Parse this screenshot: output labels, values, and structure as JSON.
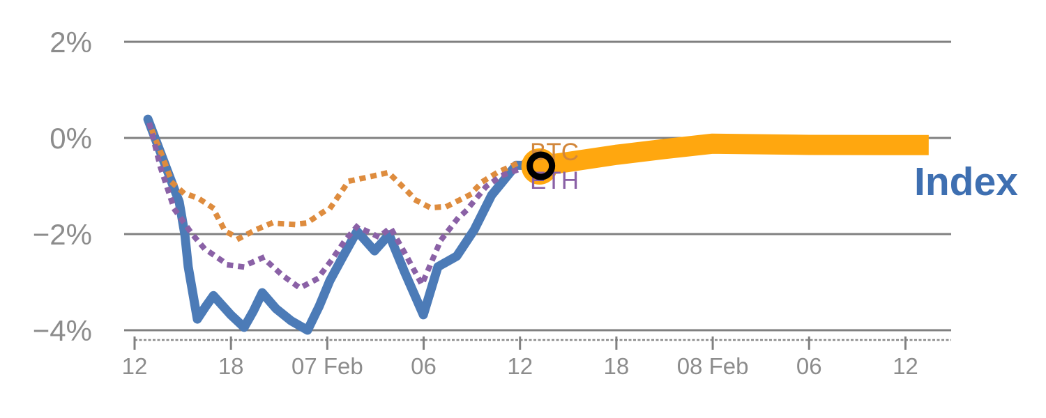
{
  "chart_data": {
    "type": "line",
    "title": "",
    "x_axis": {
      "unit": "time, 6-hour intervals",
      "ticks": [
        {
          "pos": 0,
          "label": "12"
        },
        {
          "pos": 6,
          "label": "18"
        },
        {
          "pos": 12,
          "label": "07 Feb"
        },
        {
          "pos": 18,
          "label": "06"
        },
        {
          "pos": 24,
          "label": "12"
        },
        {
          "pos": 30,
          "label": "18"
        },
        {
          "pos": 36,
          "label": "08 Feb"
        },
        {
          "pos": 42,
          "label": "06"
        },
        {
          "pos": 48,
          "label": "12"
        }
      ],
      "range_hours": [
        -0.7,
        50.6
      ],
      "minor_tick_line": "dashed"
    },
    "y_axis": {
      "ticks": [
        {
          "value": 2,
          "label": "2%"
        },
        {
          "value": 0,
          "label": "0%"
        },
        {
          "value": -2,
          "label": "−2%"
        },
        {
          "value": -4,
          "label": "−4%"
        }
      ],
      "range_pct": [
        -4.4,
        2.6
      ],
      "gridlines": true,
      "gridline_color": "#808080"
    },
    "series": [
      {
        "name": "Index",
        "color": "#4C7BB7",
        "style": "solid",
        "points": [
          [
            0.83,
            0.39
          ],
          [
            2.78,
            -1.33
          ],
          [
            3.13,
            -2.01
          ],
          [
            3.34,
            -2.68
          ],
          [
            3.91,
            -3.77
          ],
          [
            4.4,
            -3.52
          ],
          [
            4.91,
            -3.28
          ],
          [
            5.99,
            -3.68
          ],
          [
            6.82,
            -3.94
          ],
          [
            7.4,
            -3.6
          ],
          [
            7.95,
            -3.22
          ],
          [
            8.8,
            -3.55
          ],
          [
            9.73,
            -3.8
          ],
          [
            10.77,
            -4.0
          ],
          [
            11.5,
            -3.5
          ],
          [
            12.16,
            -2.97
          ],
          [
            13.0,
            -2.45
          ],
          [
            13.85,
            -1.94
          ],
          [
            14.94,
            -2.35
          ],
          [
            15.85,
            -2.01
          ],
          [
            16.8,
            -2.78
          ],
          [
            17.98,
            -3.68
          ],
          [
            18.89,
            -2.68
          ],
          [
            20.06,
            -2.46
          ],
          [
            21.15,
            -1.91
          ],
          [
            22.23,
            -1.19
          ],
          [
            23.75,
            -0.57
          ],
          [
            25.3,
            -0.58
          ]
        ]
      },
      {
        "name": "BTC",
        "color": "#DE8C3E",
        "style": "dotted",
        "points": [
          [
            1.13,
            0.12
          ],
          [
            1.74,
            -0.39
          ],
          [
            2.34,
            -0.93
          ],
          [
            3.04,
            -1.14
          ],
          [
            3.99,
            -1.26
          ],
          [
            4.86,
            -1.45
          ],
          [
            5.64,
            -1.94
          ],
          [
            6.51,
            -2.09
          ],
          [
            7.55,
            -1.91
          ],
          [
            8.55,
            -1.77
          ],
          [
            9.86,
            -1.8
          ],
          [
            10.72,
            -1.77
          ],
          [
            12.24,
            -1.43
          ],
          [
            13.33,
            -0.9
          ],
          [
            14.33,
            -0.83
          ],
          [
            15.8,
            -0.72
          ],
          [
            16.93,
            -1.09
          ],
          [
            17.54,
            -1.3
          ],
          [
            18.41,
            -1.45
          ],
          [
            19.41,
            -1.43
          ],
          [
            20.84,
            -1.19
          ],
          [
            21.71,
            -0.9
          ],
          [
            22.58,
            -0.72
          ],
          [
            23.75,
            -0.54
          ],
          [
            24.7,
            -0.49
          ]
        ]
      },
      {
        "name": "ETH",
        "color": "#8A61A6",
        "style": "dotted",
        "points": [
          [
            0.96,
            0.26
          ],
          [
            1.61,
            -0.61
          ],
          [
            2.47,
            -1.48
          ],
          [
            3.56,
            -1.99
          ],
          [
            4.34,
            -2.3
          ],
          [
            5.82,
            -2.64
          ],
          [
            6.69,
            -2.68
          ],
          [
            7.99,
            -2.49
          ],
          [
            9.21,
            -2.86
          ],
          [
            10.29,
            -3.12
          ],
          [
            11.38,
            -2.93
          ],
          [
            12.16,
            -2.59
          ],
          [
            13.11,
            -2.13
          ],
          [
            13.85,
            -1.84
          ],
          [
            15.2,
            -2.06
          ],
          [
            15.94,
            -1.87
          ],
          [
            17.0,
            -2.5
          ],
          [
            17.89,
            -3.05
          ],
          [
            19.06,
            -2.13
          ],
          [
            20.06,
            -1.7
          ],
          [
            20.63,
            -1.52
          ],
          [
            21.89,
            -1.01
          ],
          [
            22.88,
            -0.78
          ],
          [
            23.97,
            -0.65
          ],
          [
            25.1,
            -0.6
          ]
        ]
      },
      {
        "name": "Index forecast band",
        "color": "#FFA70F",
        "style": "thick-band",
        "points": [
          [
            25.3,
            -0.58
          ],
          [
            27.0,
            -0.5
          ],
          [
            30.0,
            -0.35
          ],
          [
            33.0,
            -0.23
          ],
          [
            35.95,
            -0.12
          ],
          [
            42.0,
            -0.145
          ],
          [
            49.45,
            -0.15
          ]
        ]
      }
    ],
    "annotations": {
      "btc_label": {
        "text": "BTC",
        "color": "#D2873B"
      },
      "eth_label": {
        "text": "ETH",
        "color": "#8A61A6"
      },
      "index_label": {
        "text": "Index",
        "color": "#3E6FB1"
      },
      "current_marker": {
        "shape": "ring",
        "color": "#000000",
        "at_hours": 25.3,
        "at_pct": -0.58,
        "halo_color": "#FFA70F"
      }
    }
  }
}
